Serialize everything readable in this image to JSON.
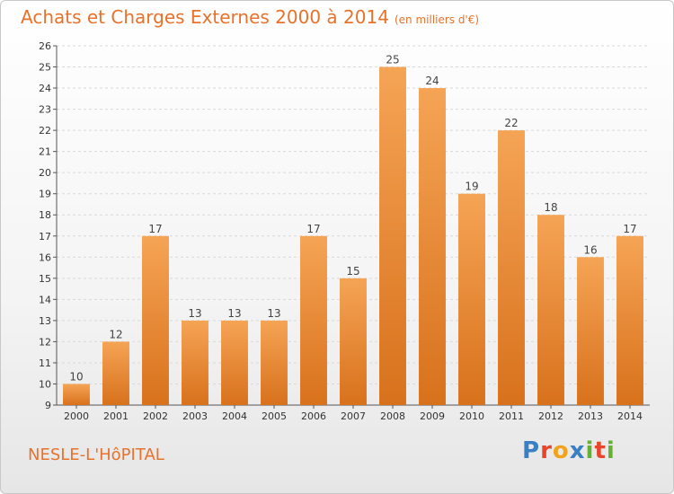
{
  "title": "Achats et Charges Externes 2000 à 2014",
  "subtitle": "(en milliers d'€)",
  "place_name": "NESLE-L'HôPITAL",
  "logo_text": "Proxiti",
  "colors": {
    "bar_top": "#f5a455",
    "bar_bottom": "#d8711c",
    "title": "#e8722a",
    "grid": "#d9d9d9",
    "logo": [
      "#3a7fc4",
      "#e8452a",
      "#f2a31c",
      "#3a7fc4",
      "#66b033",
      "#e8452a",
      "#66b033"
    ]
  },
  "chart_data": {
    "type": "bar",
    "categories": [
      "2000",
      "2001",
      "2002",
      "2003",
      "2004",
      "2005",
      "2006",
      "2007",
      "2008",
      "2009",
      "2010",
      "2011",
      "2012",
      "2013",
      "2014"
    ],
    "values": [
      10,
      12,
      17,
      13,
      13,
      13,
      17,
      15,
      25,
      24,
      19,
      22,
      18,
      16,
      17
    ],
    "data_labels": [
      "10",
      "12",
      "17",
      "13",
      "13",
      "13",
      "17",
      "15",
      "25",
      "24",
      "19",
      "22",
      "18",
      "16",
      "17"
    ],
    "title": "Achats et Charges Externes 2000 à 2014",
    "xlabel": "",
    "ylabel": "",
    "ylim": [
      9,
      26
    ],
    "yticks": [
      "9",
      "10",
      "11",
      "12",
      "13",
      "14",
      "15",
      "16",
      "17",
      "18",
      "19",
      "20",
      "21",
      "22",
      "23",
      "24",
      "25",
      "26"
    ],
    "grid": "horizontal dashed",
    "legend": "none"
  }
}
